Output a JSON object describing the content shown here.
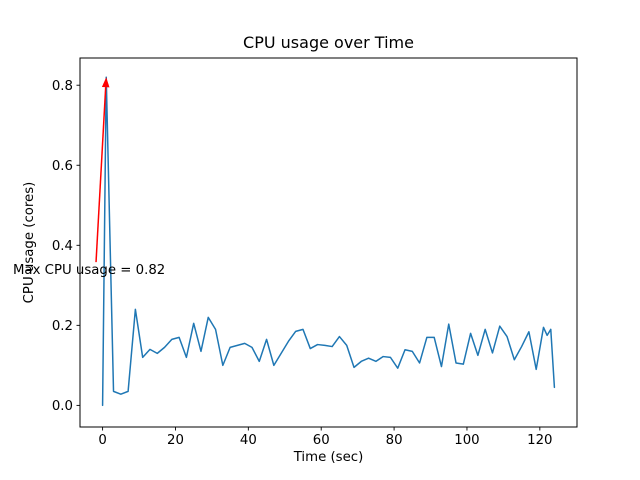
{
  "colors": {
    "background": "#ffffff",
    "text": "#000000",
    "spine": "#000000",
    "line": "#1f77b4",
    "annotation": "#ff0000"
  },
  "chart_data": {
    "type": "line",
    "title": "CPU usage over Time",
    "xlabel": "Time (sec)",
    "ylabel": "CPU usage (cores)",
    "series_name": "CPU usage",
    "line_color": "#1f77b4",
    "line_width": 1.5,
    "grid": false,
    "legend": "none",
    "xlim": [
      -6.2,
      130.2
    ],
    "ylim": [
      -0.054,
      0.868
    ],
    "xticks": {
      "values": [
        0,
        20,
        40,
        60,
        80,
        100,
        120
      ],
      "labels": [
        "0",
        "20",
        "40",
        "60",
        "80",
        "100",
        "120"
      ]
    },
    "yticks": {
      "values": [
        0.0,
        0.2,
        0.4,
        0.6,
        0.8
      ],
      "labels": [
        "0.0",
        "0.2",
        "0.4",
        "0.6",
        "0.8"
      ]
    },
    "x": [
      0,
      1,
      3,
      5,
      7,
      9,
      11,
      13,
      15,
      17,
      19,
      21,
      23,
      25,
      27,
      29,
      31,
      33,
      35,
      37,
      39,
      41,
      43,
      45,
      47,
      49,
      51,
      53,
      55,
      57,
      59,
      61,
      63,
      65,
      67,
      69,
      71,
      73,
      75,
      77,
      79,
      81,
      83,
      85,
      87,
      89,
      91,
      93,
      95,
      97,
      99,
      101,
      103,
      105,
      107,
      109,
      111,
      113,
      115,
      117,
      119,
      121,
      122,
      123,
      124
    ],
    "y": [
      0.0,
      0.82,
      0.035,
      0.028,
      0.035,
      0.24,
      0.12,
      0.14,
      0.13,
      0.145,
      0.165,
      0.17,
      0.12,
      0.205,
      0.135,
      0.22,
      0.19,
      0.1,
      0.145,
      0.15,
      0.155,
      0.145,
      0.11,
      0.165,
      0.1,
      0.13,
      0.16,
      0.185,
      0.19,
      0.142,
      0.152,
      0.15,
      0.147,
      0.172,
      0.15,
      0.095,
      0.11,
      0.118,
      0.11,
      0.122,
      0.12,
      0.093,
      0.139,
      0.135,
      0.106,
      0.17,
      0.17,
      0.097,
      0.203,
      0.106,
      0.103,
      0.18,
      0.125,
      0.19,
      0.131,
      0.198,
      0.172,
      0.114,
      0.147,
      0.184,
      0.09,
      0.195,
      0.175,
      0.19,
      0.045
    ],
    "max_value": 0.82,
    "annotation": {
      "text": "Max CPU usage = 0.82",
      "color": "#ff0000",
      "xy": [
        1,
        0.82
      ],
      "text_xy": [
        -24.6,
        0.328
      ],
      "arrow_tail_xy": [
        -1.8,
        0.358
      ]
    }
  }
}
